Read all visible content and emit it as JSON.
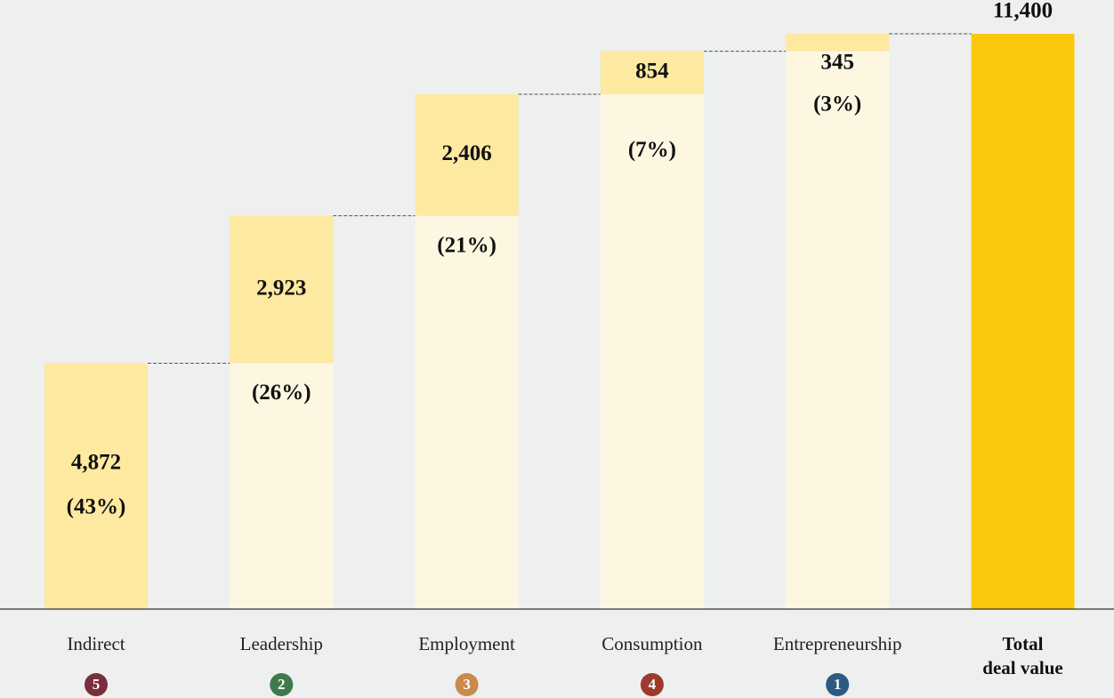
{
  "chart_data": {
    "type": "waterfall",
    "categories": [
      "Indirect",
      "Leadership",
      "Employment",
      "Consumption",
      "Entrepreneurship",
      "Total\ndeal value"
    ],
    "values": [
      4872,
      2923,
      2406,
      854,
      345,
      11400
    ],
    "value_labels": [
      "4,872",
      "2,923",
      "2,406",
      "854",
      "345",
      "11,400"
    ],
    "shares": [
      43,
      26,
      21,
      7,
      3
    ],
    "share_labels": [
      "(43%)",
      "(26%)",
      "(21%)",
      "(7%)",
      "(3%)"
    ],
    "ranks": [
      5,
      2,
      3,
      4,
      1
    ],
    "rank_colors": [
      "#7b2d3b",
      "#3f7a4c",
      "#c98a4c",
      "#9c3a2d",
      "#2c5b82"
    ],
    "color": "#fde9a0",
    "base_color": "#fdf7e2",
    "total_color": "#fcc80f"
  }
}
